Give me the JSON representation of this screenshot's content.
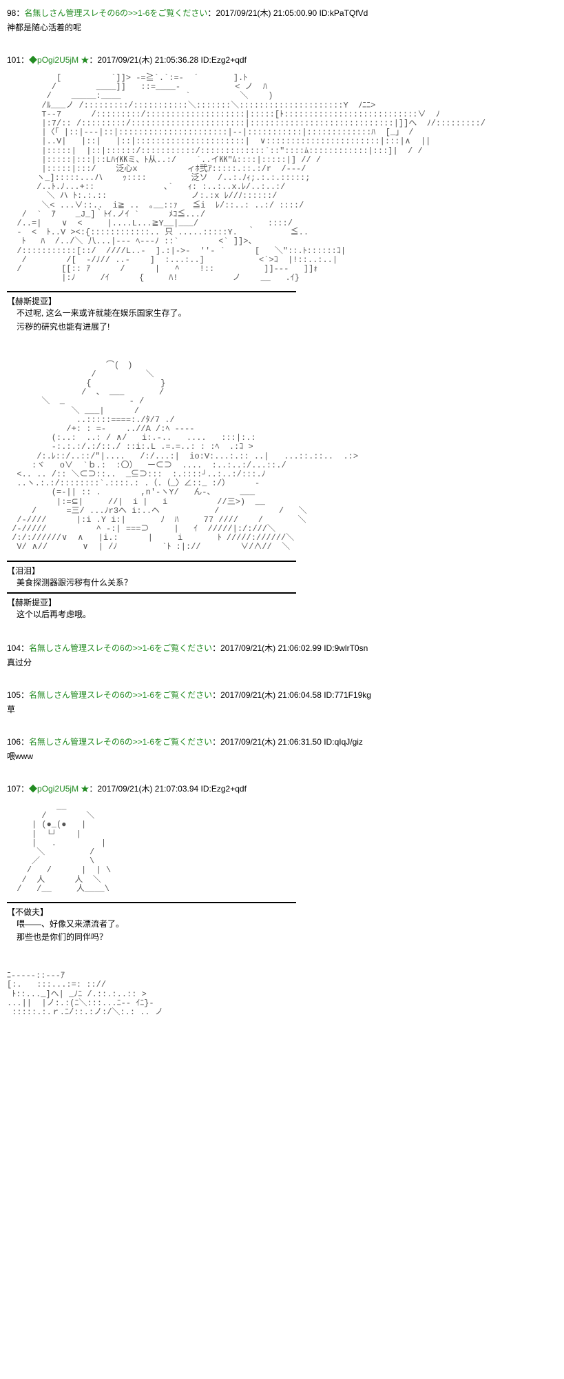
{
  "posts": [
    {
      "num": "98",
      "name": "名無しさん管理スレその6の>>1-6をご覧ください",
      "date": "2017/09/21(木) 21:05:00.90",
      "id": "kPaTQfVd",
      "body": "神都是随心活着的呢"
    },
    {
      "num": "101",
      "name": "◆pOgi2U5jM ★",
      "date": "2017/09/21(木) 21:05:36.28",
      "id": "Ezg2+qdf",
      "aa1": "          [          `]]> -=≧`.`:=-  ´       ].ﾄ\n         /        ____]]   ::=____-           < ノ  ﾊ\n        /    _____:____             `          ＼    )\n       /ﾙ___ノ /:::::::::/:::::::::::＼:::::::＼:::::::::::::::::::::Y  ﾉﾆﾆ>\n       T--7      /:::::::::/::::::::::::::::::::|:::::[ﾄ:::::::::::::::::::::::::::∨  ﾉ\n       |:7/:: /:::::::::/:::::::::::::::::::::::|:::::::::::::::::::::::::::::|]]へ  ﾉ/:::::::::/\n       |〈「 |::|---|::|::::::::::::::::::::::|--|:::::::::::|:::::::::::::ﾊ  [_」 /\n       |..V|   |::|   |::|::::::::::::::::::::::|  ∨:::::::::::::::::::::::|:::|∧  ||\n       |:::::|  |::|::::::/:::::::::::/:::::::::::::`::\"::::ﾑ::::::::::::|:::]|  / /\n       |:::::|:::|::Lﾊｲ㏍ミ、ﾄ从..:/    `..イ㏍\"ﾑ::::|:::::|] // /\n       |:::::|:::/    泛心x          ィﾎ弐ｱ:::::.::.:/r  /---/\n      ヽ_]:::::...ハ    ｯ::::         泛ソ  /..:.ﾉｨ;.:.:.:::::;\n      /..ﾄ.ﾉ...+::              ､`   ｨ: :..:..x.ﾚ/..:..:/\n        ＼ ハ ﾄ:.:.::                 ノ:.:x ﾚ//ﾉ::::::/\n       ＼< ...∨::..  i≧ ..  ｡__::ｧ   ≦i  ﾚ/::..: ..:/ ::::/\n   /  `  ｱ    _J_]｀ﾄｲ.ノｲ `      ﾒｺ≦.../\n  /..=|    ∨  <     |....L...≧Y__|___/              ::::/\n  -  <  ﾄ..V ><:{::::::::::::.. 只 .....:::::Y.  ｀       ≦..\n   ﾄ   ﾊ  /../＼ 八...|--- ﾍ---ﾉ ::`        <` ]]>、\n  /:::::::::::[::/  ////L..-  ].:|->-  ''- `      [   ＼\"::.ﾄ::::::ｺ|\n   /        /[  -/ﾉ// ..-    ]  :...:..]           <`>ｺ  |!::..:..|\n  /        [[:: ｱ      /      |   ^    !::          ]]---   ]]ｫ\n           |:ﾉ     /ｲ      {     ﾊ!           ノ    __   .ｲ}",
      "speaker1": "【赫斯提亚】",
      "line1a": "不过呢, 这么一来或许就能在娱乐国家生存了。",
      "line1b": "污秽的研究也能有进展了!",
      "aa2": "                    ⌒(　)\n                 /          ＼\n                {              }\n               /  、 ___       /\n       ＼  _             - /\n             ＼ ___|      /\n              ..:::::====:./ﾀ/7 ./\n            /+: : =-    ..//A /:ﾍ ----\n         (:..:  ..: / ∧/   i:.-..   ....   :::|:.:\n         -:.:.:/.:/::./ ::i:.L .=.=..: : :ﾍ  .:ｺ >\n      /:.ﾚ::/..::/\"|....   /:/...:|  io:V:...:.:: ..|   ...::.::..  .:>\n     :ヾ   o∨  `ｂ.:  :〇）  ー⊂⊃  ....  :..:..:/...::./\n  <.. .. /:: ＼⊂⊃::..  _⊆⊃:::  :.::::┘..:..:/:::.ﾉ\n  ..ヽ.:.:/::::::::`.::::.: .（.（_〉∠::_ :/）     -\n         (=-|| :: .        ,n'-ヽY/   ん-、     ___\n          |:=⊆|     //|  i |   i          //三>)  __\n     /      =三/ ...ﾉr3へ i:..ヘ           /            /   ＼\n  /-////      |:i .Y i:|       ﾉ  ﾊ     77 ////    /       ＼\n /-/////          ^ -:| ===⊃     |   ｲ  /////|:/:///＼\n /:/://////∨  ∧   |i.:      |     i       ﾄ /////://////＼\n  V/ ∧//       ∨  | /ﾉ         `ﾄ :|://        ∨/∧//  ＼",
      "speaker2": "【泪泪】",
      "line2": "美食探测器跟污秽有什么关系？",
      "speaker3": "【赫斯提亚】",
      "line3": "这个以后再考虑哦。"
    },
    {
      "num": "104",
      "name": "名無しさん管理スレその6の>>1-6をご覧ください",
      "date": "2017/09/21(木) 21:06:02.99",
      "id": "9wlrT0sn",
      "body": "真过分"
    },
    {
      "num": "105",
      "name": "名無しさん管理スレその6の>>1-6をご覧ください",
      "date": "2017/09/21(木) 21:06:04.58",
      "id": "771F19kg",
      "body": "草"
    },
    {
      "num": "106",
      "name": "名無しさん管理スレその6の>>1-6をご覧ください",
      "date": "2017/09/21(木) 21:06:31.50",
      "id": "qIqJ/giz",
      "body": "喂www"
    },
    {
      "num": "107",
      "name": "◆pOgi2U5jM ★",
      "date": "2017/09/21(木) 21:07:03.94",
      "id": "Ezg2+qdf",
      "aa1": "          __\n       /        ＼\n     | (●_(●   |\n     |  └┘    |\n     |   .         |\n      ＼         /\n     ／          \\\n    /   /      |  | \\\n   /  人      人  ＼\n  /   /__     人____\\",
      "speaker1": "【不做夫】",
      "line1a": "喂——、好像又来漂流者了。",
      "line1b": "那些也是你们的同伴吗？",
      "aa2": "ﾆ-----::---ｱ\n[:.   :::...:=: :://\n ﾄ::..._]へ| _ﾉﾆ /.::.:..:: >\n...||  |ノ:.:(ﾆ＼:::...ﾆ-- ｲﾆ}-\n :::::.:.ｒ.ﾆ/::.:ノ:/＼:.: .. ノ"
    }
  ]
}
